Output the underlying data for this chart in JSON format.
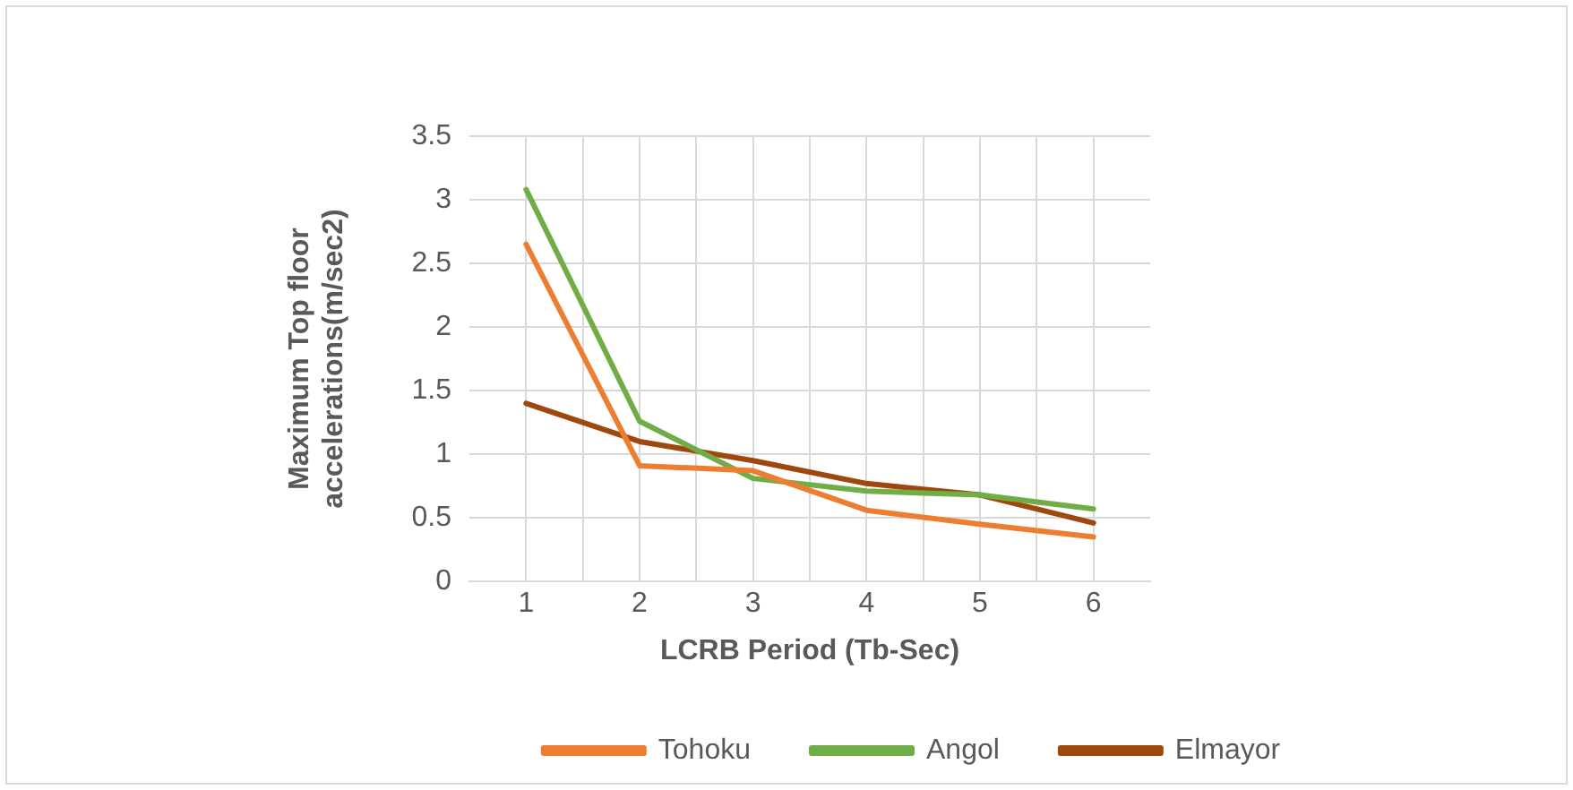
{
  "chart_data": {
    "type": "line",
    "xlabel": "LCRB Period (Tb-Sec)",
    "ylabel": "Maximum Top floor accelerations(m/sec2)",
    "x": [
      1,
      2,
      3,
      4,
      5,
      6
    ],
    "xlim": [
      0.5,
      6.5
    ],
    "xticks": [
      1,
      {
        "value": 1.5,
        "label": null
      },
      2,
      {
        "value": 2.5,
        "label": null
      },
      3,
      {
        "value": 3.5,
        "label": null
      },
      4,
      {
        "value": 4.5,
        "label": null
      },
      5,
      {
        "value": 5.5,
        "label": null
      },
      6
    ],
    "ylim": [
      0,
      3.5
    ],
    "yticks": [
      0,
      0.5,
      1,
      1.5,
      2,
      2.5,
      3,
      3.5
    ],
    "grid": true,
    "legend": "bottom",
    "marker": "none",
    "line_style": "solid",
    "series": [
      {
        "name": "Tohoku",
        "color": "#ed7d31",
        "values": [
          2.65,
          0.91,
          0.87,
          0.56,
          0.45,
          0.35
        ]
      },
      {
        "name": "Angol",
        "color": "#70ad47",
        "values": [
          3.08,
          1.26,
          0.81,
          0.71,
          0.68,
          0.57
        ]
      },
      {
        "name": "Elmayor",
        "color": "#9e480e",
        "values": [
          1.4,
          1.1,
          0.95,
          0.77,
          0.68,
          0.46
        ]
      }
    ]
  }
}
